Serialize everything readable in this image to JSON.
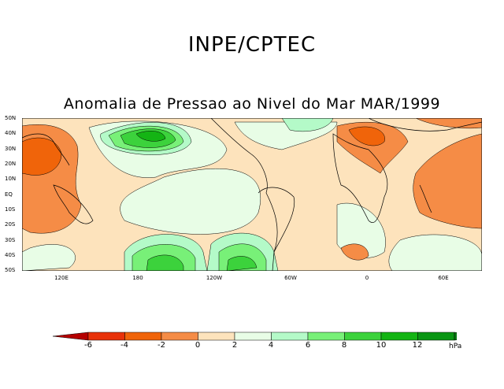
{
  "header": {
    "organization": "INPE/CPTEC"
  },
  "map": {
    "title": "Anomalia de Pressao ao Nivel do Mar MAR/1999",
    "lat_labels": [
      "50N",
      "40N",
      "30N",
      "20N",
      "10N",
      "EQ",
      "10S",
      "20S",
      "30S",
      "40S",
      "50S"
    ],
    "lon_labels": [
      "120E",
      "180",
      "120W",
      "60W",
      "0",
      "60E"
    ]
  },
  "legend": {
    "ticks": [
      "-6",
      "-4",
      "-2",
      "0",
      "2",
      "4",
      "6",
      "8",
      "10",
      "12"
    ],
    "unit": "hPa",
    "colors": [
      "#b40000",
      "#e8320a",
      "#f0640a",
      "#f58c46",
      "#fde3bc",
      "#e8fde6",
      "#b4fac8",
      "#78f078",
      "#3cd23c",
      "#14b414",
      "#0a9614",
      "#087814"
    ]
  }
}
